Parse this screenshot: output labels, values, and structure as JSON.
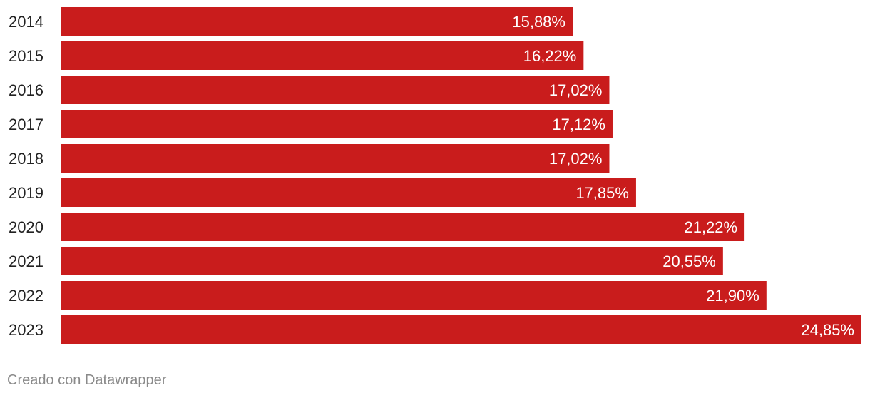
{
  "chart_data": {
    "type": "bar",
    "orientation": "horizontal",
    "categories": [
      "2014",
      "2015",
      "2016",
      "2017",
      "2018",
      "2019",
      "2020",
      "2021",
      "2022",
      "2023"
    ],
    "values": [
      15.88,
      16.22,
      17.02,
      17.12,
      17.02,
      17.85,
      21.22,
      20.55,
      21.9,
      24.85
    ],
    "value_labels": [
      "15,88%",
      "16,22%",
      "17,02%",
      "17,12%",
      "17,02%",
      "17,85%",
      "21,22%",
      "20,55%",
      "21,90%",
      "24,85%"
    ],
    "unit": "%",
    "xlim": [
      0,
      24.85
    ],
    "bar_color": "#c91c1c",
    "value_label_color": "#ffffff",
    "grid": false,
    "legend": "none"
  },
  "footer": {
    "credit": "Creado con Datawrapper"
  }
}
